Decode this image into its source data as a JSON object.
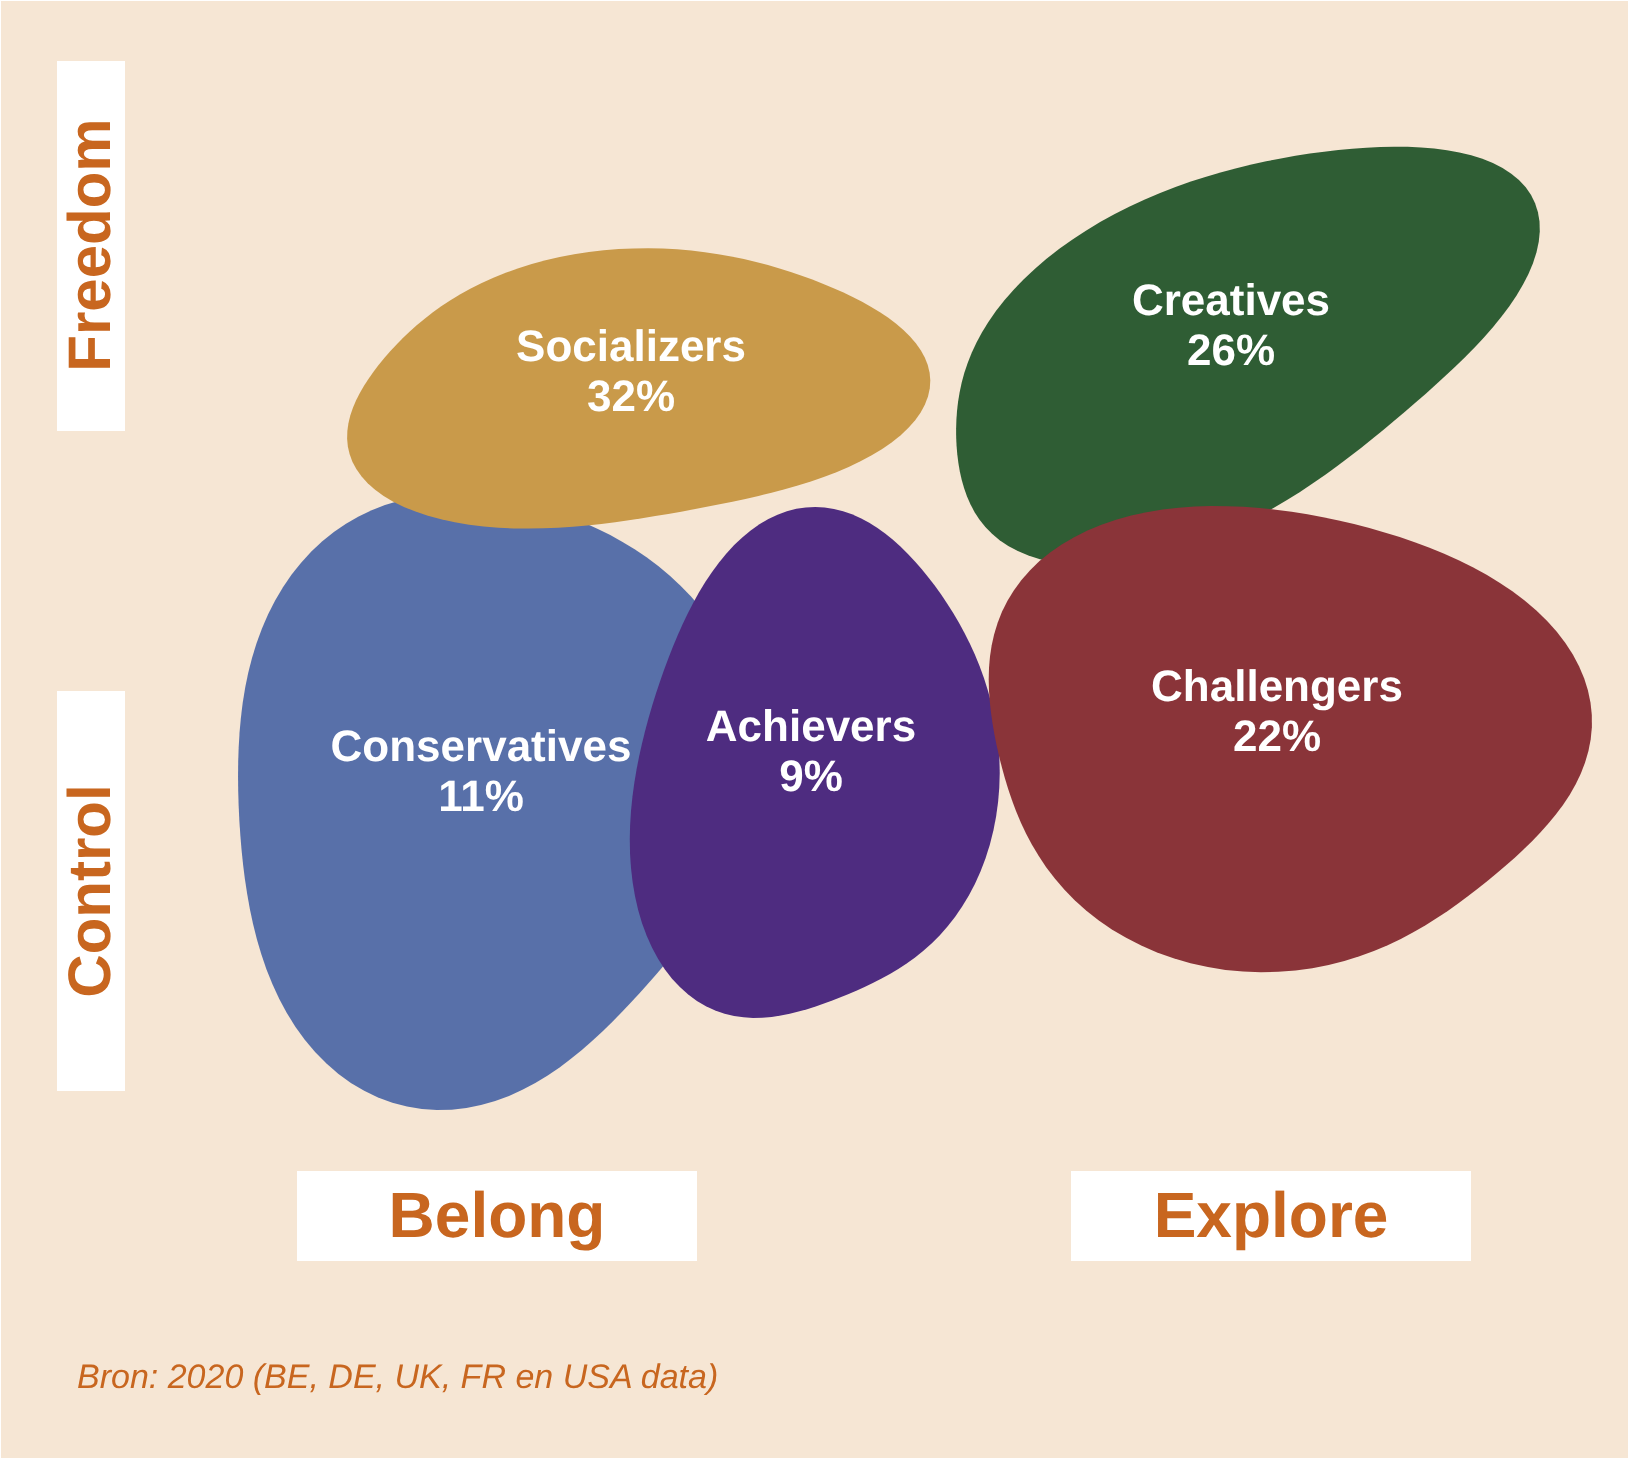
{
  "chart_data": {
    "type": "other",
    "categories": [
      "Socializers",
      "Creatives",
      "Conservatives",
      "Achievers",
      "Challengers"
    ],
    "values": [
      32,
      26,
      11,
      9,
      22
    ],
    "value_labels": [
      "32%",
      "26%",
      "11%",
      "9%",
      "22%"
    ],
    "colors": [
      "#c99a4a",
      "#2f5d34",
      "#5870a9",
      "#4e2c80",
      "#8a3439"
    ],
    "annotations": [
      "Freedom",
      "Control",
      "Belong",
      "Explore",
      "Bron: 2020 (BE, DE, UK, FR en USA data)"
    ]
  }
}
